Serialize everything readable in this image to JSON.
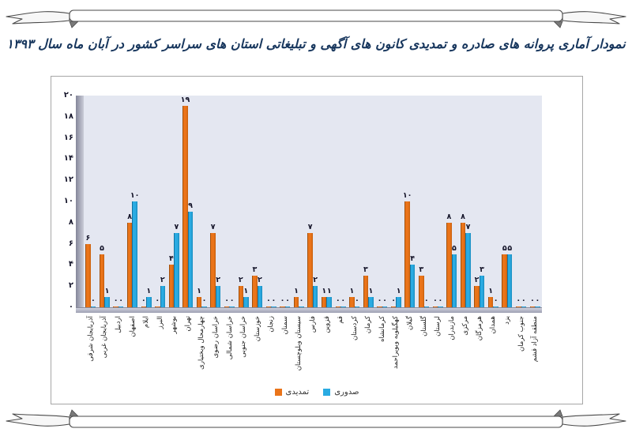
{
  "legend": [
    {
      "label": "تمدیدی",
      "color": "#ea7419"
    },
    {
      "label": "صدوری",
      "color": "#2aabe2"
    }
  ],
  "colors": {
    "renewal_orange": "#ea7419",
    "issuance_blue": "#2aabe2",
    "title_navy": "#17365d",
    "plot_background": "#e4e7f1"
  },
  "chart_data": {
    "type": "bar",
    "title": "نمودار آماری پروانه های صادره و تمدیدی کانون های آگهی و تبلیغاتی استان های سراسر کشور در آبان ماه سال ۱۳۹۳",
    "categories": [
      "آذربایجان شرقی",
      "آذربایجان غربی",
      "اردبیل",
      "اصفهان",
      "ایلام",
      "البرز",
      "بوشهر",
      "تهران",
      "چهارمحال وبختیاری",
      "خراسان رضوی",
      "خراسان شمالی",
      "خراسان جنوبی",
      "خوزستان",
      "زنجان",
      "سمنان",
      "سیستان وبلوچستان",
      "فارس",
      "قزوین",
      "قم",
      "کردستان",
      "کرمان",
      "کرمانشاه",
      "کهگیلویه وبویراحمد",
      "گیلان",
      "گلستان",
      "لرستان",
      "مازندران",
      "مرکزی",
      "هرمزگان",
      "همدان",
      "یزد",
      "جنوب کرمان",
      "منطقه آزاد قشم"
    ],
    "series": [
      {
        "name": "تمدیدی",
        "color": "#ea7419",
        "values": [
          6,
          5,
          0,
          8,
          0,
          0,
          4,
          19,
          1,
          7,
          0,
          2,
          3,
          0,
          0,
          1,
          7,
          1,
          0,
          1,
          3,
          0,
          0,
          10,
          3,
          0,
          8,
          8,
          2,
          1,
          5,
          0,
          0
        ]
      },
      {
        "name": "صدوری",
        "color": "#2aabe2",
        "values": [
          0,
          1,
          0,
          10,
          1,
          2,
          7,
          9,
          0,
          2,
          0,
          1,
          2,
          0,
          0,
          0,
          2,
          1,
          0,
          0,
          1,
          0,
          1,
          4,
          0,
          0,
          5,
          7,
          3,
          0,
          5,
          0,
          0
        ]
      }
    ],
    "ylim": [
      0,
      20
    ],
    "ytick_step": 2,
    "value_labels": "persian-digits",
    "grid": false,
    "legend_position": "bottom"
  }
}
